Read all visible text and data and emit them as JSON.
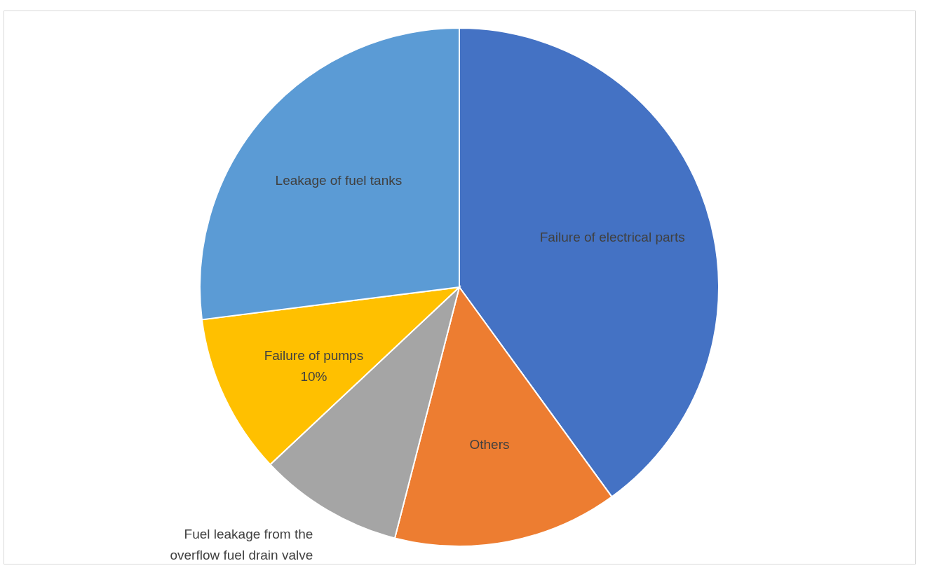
{
  "chart_data": {
    "type": "pie",
    "categories": [
      "Failure of electrical parts",
      "Others",
      "Fuel leakage from the overflow fuel drain valve",
      "Failure of pumps",
      "Leakage of fuel tanks"
    ],
    "values": [
      40,
      14,
      9,
      10,
      27
    ],
    "colors": [
      "#4472c4",
      "#ed7d31",
      "#a5a5a5",
      "#ffc000",
      "#5b9bd5"
    ],
    "value_labels": [
      null,
      null,
      null,
      "10%",
      null
    ],
    "legend": false
  }
}
